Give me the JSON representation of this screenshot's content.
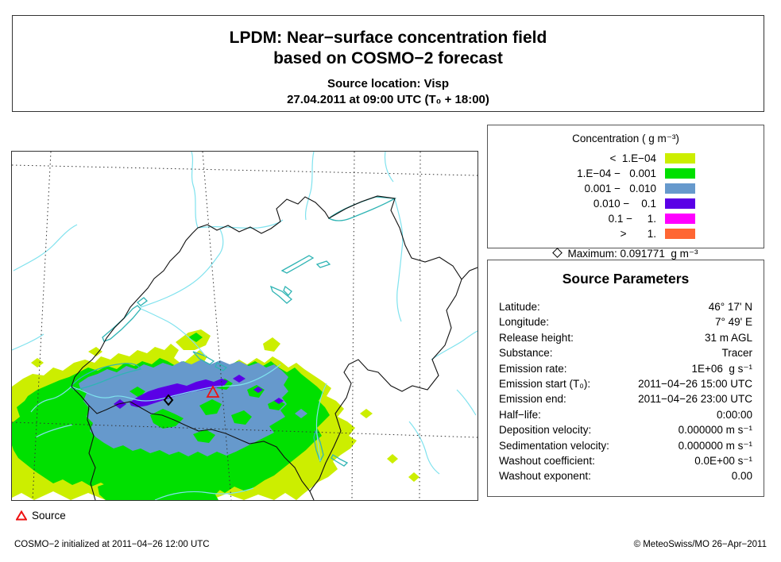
{
  "title": {
    "line1": "LPDM: Near−surface concentration field",
    "line2": "based on COSMO−2 forecast",
    "source_line": "Source location: Visp",
    "time_line": "27.04.2011 at 09:00 UTC (T₀ + 18:00)"
  },
  "legend": {
    "title": "Concentration ( g m⁻³)",
    "rows": [
      {
        "label": "<  1.E−04",
        "color": "#CCEE00"
      },
      {
        "label": "1.E−04 −   0.001",
        "color": "#00E000"
      },
      {
        "label": "0.001 −   0.010",
        "color": "#6699CC"
      },
      {
        "label": "0.010 −    0.1",
        "color": "#5A00E6"
      },
      {
        "label": "0.1 −     1.",
        "color": "#FF00FF"
      },
      {
        "label": ">       1.",
        "color": "#FF6633"
      }
    ],
    "maximum_label": "Maximum: 0.091771  g m⁻³"
  },
  "source_parameters": {
    "heading": "Source Parameters",
    "rows": [
      {
        "label": "Latitude:",
        "value": "46° 17' N"
      },
      {
        "label": "Longitude:",
        "value": "7° 49' E"
      },
      {
        "label": "Release height:",
        "value": "31 m AGL"
      },
      {
        "label": "Substance:",
        "value": "Tracer"
      },
      {
        "label": "Emission rate:",
        "value": "1E+06  g s⁻¹"
      },
      {
        "label": "Emission start (T₀):",
        "value": "2011−04−26 15:00 UTC"
      },
      {
        "label": "Emission end:",
        "value": "2011−04−26 23:00 UTC"
      },
      {
        "label": "Half−life:",
        "value": "0:00:00"
      },
      {
        "label": "Deposition velocity:",
        "value": "0.000000 m s⁻¹"
      },
      {
        "label": "Sedimentation velocity:",
        "value": "0.000000 m s⁻¹"
      },
      {
        "label": "Washout coefficient:",
        "value": "0.0E+00 s⁻¹"
      },
      {
        "label": "Washout exponent:",
        "value": "0.00"
      }
    ]
  },
  "map": {
    "source_key_label": "Source",
    "colors": {
      "level1": "#CCEE00",
      "level2": "#00E000",
      "level3": "#6699CC",
      "level4": "#5A00E6",
      "level5": "#FF00FF",
      "level6": "#FF6633",
      "river": "#7FE2EE",
      "lake": "#2FB4B4",
      "border": "#111111",
      "graticule": "#333333",
      "source_marker": "#EE1111",
      "max_marker": "#000000"
    }
  },
  "footer": {
    "left": "COSMO−2 initialized at 2011−04−26 12:00 UTC",
    "right": "© MeteoSwiss/MO 26−Apr−2011"
  },
  "chart_data": {
    "type": "heatmap",
    "title": "LPDM near-surface concentration field, COSMO-2 forecast",
    "units": "g m-3",
    "levels": [
      "< 1.E-04",
      "1.E-04 - 0.001",
      "0.001 - 0.010",
      "0.010 - 0.1",
      "0.1 - 1.",
      "> 1."
    ],
    "level_colors": [
      "#CCEE00",
      "#00E000",
      "#6699CC",
      "#5A00E6",
      "#FF00FF",
      "#FF6633"
    ],
    "maximum_value": 0.091771,
    "source_location": "Visp",
    "valid_time": "27.04.2011 09:00 UTC (T0 + 18:00)",
    "legend_position": "top-right",
    "notes": "Plume centered over Valais (SW Switzerland), elongated WSW-ENE; violet core along Rhone valley, surrounded by blue, green and yellow-green contour bands extending beyond the SW map edge"
  }
}
